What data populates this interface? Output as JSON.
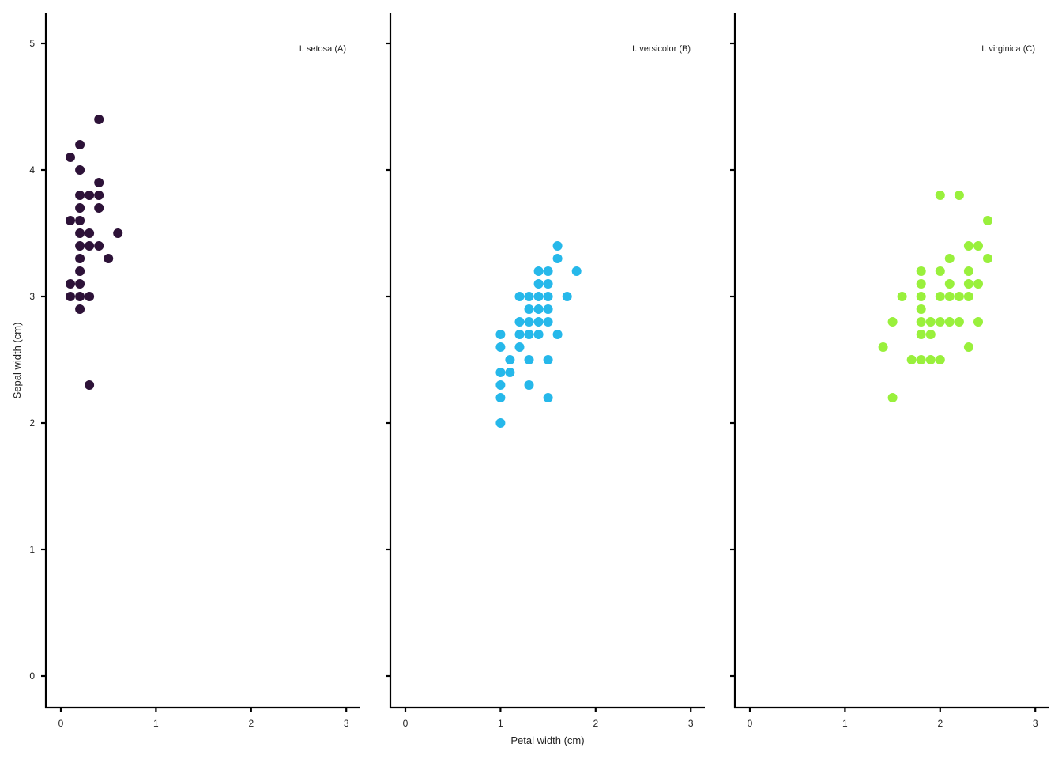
{
  "chart_data": {
    "type": "scatter",
    "xlabel": "Petal width (cm)",
    "ylabel": "Sepal width (cm)",
    "xlim": [
      -0.15,
      3.15
    ],
    "ylim": [
      -0.25,
      5.25
    ],
    "x_ticks": [
      0,
      1,
      2,
      3
    ],
    "y_ticks": [
      0,
      1,
      2,
      3,
      4,
      5
    ],
    "grid": false,
    "legend": "none",
    "panels": [
      {
        "label": "I. setosa (A)",
        "color": "#2d1238",
        "points": [
          [
            0.4,
            4.4
          ],
          [
            0.2,
            4.2
          ],
          [
            0.1,
            4.1
          ],
          [
            0.2,
            4.0
          ],
          [
            0.4,
            3.9
          ],
          [
            0.2,
            3.8
          ],
          [
            0.3,
            3.8
          ],
          [
            0.4,
            3.8
          ],
          [
            0.2,
            3.7
          ],
          [
            0.4,
            3.7
          ],
          [
            0.1,
            3.6
          ],
          [
            0.2,
            3.6
          ],
          [
            0.2,
            3.5
          ],
          [
            0.3,
            3.5
          ],
          [
            0.6,
            3.5
          ],
          [
            0.2,
            3.4
          ],
          [
            0.3,
            3.4
          ],
          [
            0.4,
            3.4
          ],
          [
            0.2,
            3.3
          ],
          [
            0.5,
            3.3
          ],
          [
            0.2,
            3.2
          ],
          [
            0.1,
            3.1
          ],
          [
            0.2,
            3.1
          ],
          [
            0.1,
            3.0
          ],
          [
            0.2,
            3.0
          ],
          [
            0.3,
            3.0
          ],
          [
            0.2,
            2.9
          ],
          [
            0.3,
            2.3
          ]
        ]
      },
      {
        "label": "I. versicolor (B)",
        "color": "#26b8ea",
        "points": [
          [
            1.6,
            3.4
          ],
          [
            1.6,
            3.3
          ],
          [
            1.4,
            3.2
          ],
          [
            1.5,
            3.2
          ],
          [
            1.8,
            3.2
          ],
          [
            1.4,
            3.1
          ],
          [
            1.5,
            3.1
          ],
          [
            1.2,
            3.0
          ],
          [
            1.3,
            3.0
          ],
          [
            1.4,
            3.0
          ],
          [
            1.5,
            3.0
          ],
          [
            1.7,
            3.0
          ],
          [
            1.3,
            2.9
          ],
          [
            1.4,
            2.9
          ],
          [
            1.5,
            2.9
          ],
          [
            1.2,
            2.8
          ],
          [
            1.3,
            2.8
          ],
          [
            1.4,
            2.8
          ],
          [
            1.5,
            2.8
          ],
          [
            1.0,
            2.7
          ],
          [
            1.2,
            2.7
          ],
          [
            1.3,
            2.7
          ],
          [
            1.4,
            2.7
          ],
          [
            1.6,
            2.7
          ],
          [
            1.0,
            2.6
          ],
          [
            1.2,
            2.6
          ],
          [
            1.1,
            2.5
          ],
          [
            1.3,
            2.5
          ],
          [
            1.5,
            2.5
          ],
          [
            1.0,
            2.4
          ],
          [
            1.1,
            2.4
          ],
          [
            1.0,
            2.3
          ],
          [
            1.3,
            2.3
          ],
          [
            1.0,
            2.2
          ],
          [
            1.5,
            2.2
          ],
          [
            1.0,
            2.0
          ]
        ]
      },
      {
        "label": "I. virginica (C)",
        "color": "#99f03c",
        "points": [
          [
            2.0,
            3.8
          ],
          [
            2.2,
            3.8
          ],
          [
            2.5,
            3.6
          ],
          [
            2.3,
            3.4
          ],
          [
            2.4,
            3.4
          ],
          [
            2.1,
            3.3
          ],
          [
            2.5,
            3.3
          ],
          [
            1.8,
            3.2
          ],
          [
            2.0,
            3.2
          ],
          [
            2.3,
            3.2
          ],
          [
            1.8,
            3.1
          ],
          [
            2.1,
            3.1
          ],
          [
            2.3,
            3.1
          ],
          [
            2.4,
            3.1
          ],
          [
            1.6,
            3.0
          ],
          [
            1.8,
            3.0
          ],
          [
            2.0,
            3.0
          ],
          [
            2.1,
            3.0
          ],
          [
            2.2,
            3.0
          ],
          [
            2.3,
            3.0
          ],
          [
            1.8,
            2.9
          ],
          [
            1.5,
            2.8
          ],
          [
            1.8,
            2.8
          ],
          [
            1.9,
            2.8
          ],
          [
            2.0,
            2.8
          ],
          [
            2.1,
            2.8
          ],
          [
            2.2,
            2.8
          ],
          [
            2.4,
            2.8
          ],
          [
            1.8,
            2.7
          ],
          [
            1.9,
            2.7
          ],
          [
            1.4,
            2.6
          ],
          [
            2.3,
            2.6
          ],
          [
            1.7,
            2.5
          ],
          [
            1.8,
            2.5
          ],
          [
            1.9,
            2.5
          ],
          [
            2.0,
            2.5
          ],
          [
            1.5,
            2.2
          ]
        ]
      }
    ]
  }
}
